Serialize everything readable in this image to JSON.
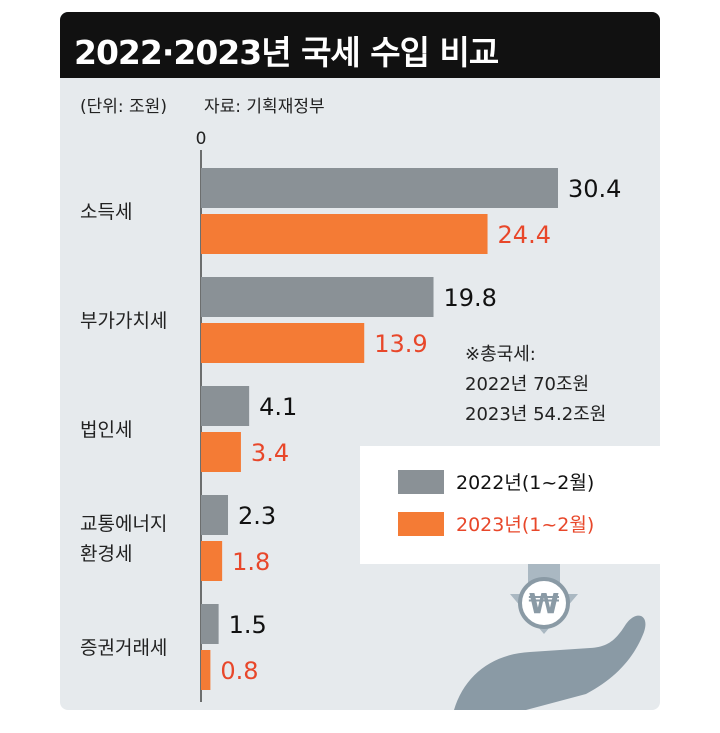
{
  "title": "2022·2023년 국세 수입 비교",
  "meta": {
    "unit": "(단위: 조원)",
    "source": "자료: 기획재정부"
  },
  "colors": {
    "series_2022": "#8a9196",
    "series_2023": "#f47b35",
    "label_2023": "#e8472a",
    "title_bg": "#111111",
    "panel_bg": "#e6eaed"
  },
  "note": {
    "lines": [
      "※총국세:",
      "2022년 70조원",
      "2023년 54.2조원"
    ]
  },
  "chart_data": {
    "type": "bar",
    "orientation": "horizontal",
    "title": "2022·2023년 국세 수입 비교",
    "xlabel": "",
    "ylabel": "",
    "x_tick_labels": [
      "0"
    ],
    "categories": [
      [
        "소득세"
      ],
      [
        "부가가치세"
      ],
      [
        "법인세"
      ],
      [
        "교통에너지",
        "환경세"
      ],
      [
        "증권거래세"
      ]
    ],
    "series": [
      {
        "name": "2022년(1~2월)",
        "values": [
          30.4,
          19.8,
          4.1,
          2.3,
          1.5
        ],
        "labels": [
          "30.4",
          "19.8",
          "4.1",
          "2.3",
          "1.5"
        ],
        "color": "#8a9196"
      },
      {
        "name": "2023년(1~2월)",
        "values": [
          24.4,
          13.9,
          3.4,
          1.8,
          0.8
        ],
        "labels": [
          "24.4",
          "13.9",
          "3.4",
          "1.8",
          "0.8"
        ],
        "color": "#f47b35"
      }
    ],
    "xlim": [
      0,
      30.4
    ],
    "legend": "right",
    "grid": false
  },
  "icons": {
    "decoration": "hand-won-arrow-icon"
  }
}
